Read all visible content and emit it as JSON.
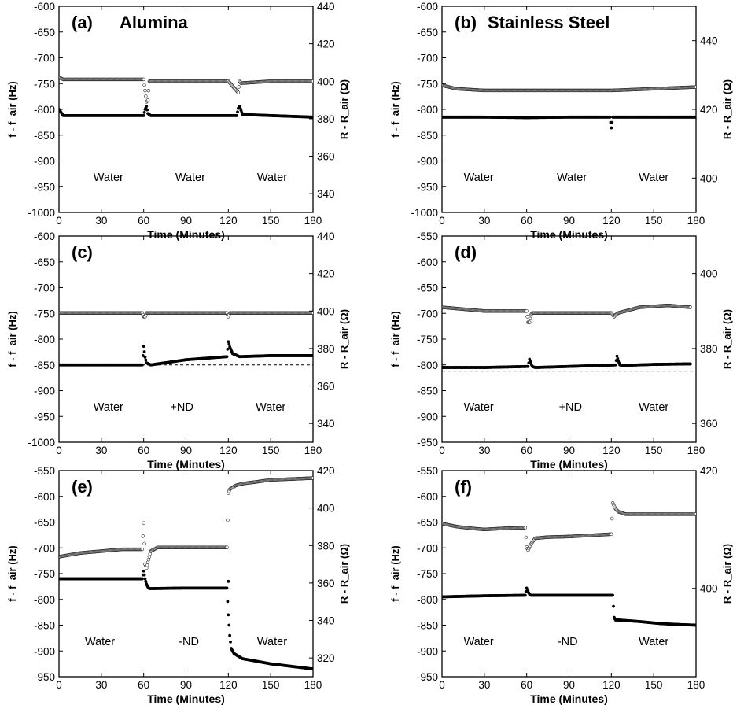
{
  "chart_data": [
    {
      "type": "scatter",
      "title_letter": "(a)",
      "title": "Alumina",
      "xlabel": "Time (Minutes)",
      "ylabel_left": "f - f_air (Hz)",
      "ylabel_right": "R - R_air (Ω)",
      "xlim": [
        0,
        180
      ],
      "ylim_left": [
        -1000,
        -600
      ],
      "ylim_right": [
        330,
        440
      ],
      "xticks": [
        0,
        30,
        60,
        90,
        120,
        150,
        180
      ],
      "yticks_left": [
        -600,
        -650,
        -700,
        -750,
        -800,
        -850,
        -900,
        -950,
        -1000
      ],
      "yticks_right": [
        340,
        360,
        380,
        400,
        420,
        440
      ],
      "conditions": [
        {
          "label": "Water",
          "x": 35
        },
        {
          "label": "Water",
          "x": 93
        },
        {
          "label": "Water",
          "x": 151
        }
      ],
      "baseline": null,
      "series": [
        {
          "name": "f - f_air (Hz)",
          "axis": "left",
          "marker": "filled",
          "x": [
            0,
            3,
            30,
            60,
            61,
            62,
            63,
            65,
            90,
            120,
            126,
            127,
            128,
            130,
            150,
            180
          ],
          "y": [
            -800,
            -812,
            -812,
            -812,
            -800,
            -794,
            -808,
            -812,
            -812,
            -812,
            -812,
            -798,
            -794,
            -810,
            -812,
            -815
          ]
        },
        {
          "name": "R - R_air (Ω)",
          "axis": "right",
          "marker": "open",
          "x": [
            0,
            3,
            30,
            60,
            62,
            63,
            64,
            90,
            120,
            127,
            128,
            129,
            150,
            180
          ],
          "y": [
            402,
            401,
            401,
            401,
            389,
            390,
            400,
            400,
            400,
            394,
            400,
            399,
            400,
            400
          ]
        }
      ]
    },
    {
      "type": "scatter",
      "title_letter": "(b)",
      "title": "Stainless Steel",
      "xlabel": "Time (Minutes)",
      "ylabel_left": "f - f_air (Hz)",
      "ylabel_right": "R - R_air (Ω)",
      "xlim": [
        0,
        180
      ],
      "ylim_left": [
        -1000,
        -600
      ],
      "ylim_right": [
        390,
        450
      ],
      "xticks": [
        0,
        30,
        60,
        90,
        120,
        150,
        180
      ],
      "yticks_left": [
        -600,
        -650,
        -700,
        -750,
        -800,
        -850,
        -900,
        -950,
        -1000
      ],
      "yticks_right": [
        400,
        420,
        440
      ],
      "conditions": [
        {
          "label": "Water",
          "x": 26
        },
        {
          "label": "Water",
          "x": 92
        },
        {
          "label": "Water",
          "x": 150
        }
      ],
      "baseline": null,
      "series": [
        {
          "name": "f - f_air (Hz)",
          "axis": "left",
          "marker": "filled",
          "x": [
            0,
            30,
            60,
            90,
            119,
            120,
            121,
            150,
            180
          ],
          "y": [
            -815,
            -815,
            -816,
            -815,
            -815,
            -836,
            -815,
            -815,
            -815
          ]
        },
        {
          "name": "R - R_air (Ω)",
          "axis": "right",
          "marker": "open",
          "x": [
            0,
            10,
            30,
            60,
            90,
            120,
            150,
            180
          ],
          "y": [
            427,
            426,
            425.5,
            425.5,
            425.5,
            425.5,
            426,
            426.5
          ]
        }
      ]
    },
    {
      "type": "scatter",
      "title_letter": "(c)",
      "title": "",
      "xlabel": "Time (Minutes)",
      "ylabel_left": "f - f_air (Hz)",
      "ylabel_right": "R - R_air (Ω)",
      "xlim": [
        0,
        180
      ],
      "ylim_left": [
        -1000,
        -600
      ],
      "ylim_right": [
        330,
        440
      ],
      "xticks": [
        0,
        30,
        60,
        90,
        120,
        150,
        180
      ],
      "yticks_left": [
        -600,
        -650,
        -700,
        -750,
        -800,
        -850,
        -900,
        -950,
        -1000
      ],
      "yticks_right": [
        340,
        360,
        380,
        400,
        420,
        440
      ],
      "conditions": [
        {
          "label": "Water",
          "x": 35
        },
        {
          "label": "+ND",
          "x": 87
        },
        {
          "label": "Water",
          "x": 150
        }
      ],
      "baseline": -850,
      "series": [
        {
          "name": "f - f_air (Hz)",
          "axis": "left",
          "marker": "filled",
          "x": [
            0,
            30,
            59,
            60,
            61,
            62,
            65,
            90,
            119,
            120,
            121,
            123,
            128,
            150,
            180
          ],
          "y": [
            -850,
            -850,
            -850,
            -814,
            -835,
            -846,
            -850,
            -840,
            -834,
            -805,
            -815,
            -828,
            -834,
            -832,
            -832
          ],
          "dashed_baseline": -850
        },
        {
          "name": "R - R_air (Ω)",
          "axis": "right",
          "marker": "open",
          "x": [
            0,
            30,
            59,
            60,
            61,
            62,
            90,
            119,
            120,
            121,
            150,
            180
          ],
          "y": [
            399,
            399,
            399,
            397,
            397,
            399,
            399,
            399,
            397,
            399,
            399,
            399
          ]
        }
      ]
    },
    {
      "type": "scatter",
      "title_letter": "(d)",
      "title": "",
      "xlabel": "Time (Minutes)",
      "ylabel_left": "f - f_air (Hz)",
      "ylabel_right": "R - R_air (Ω)",
      "xlim": [
        0,
        180
      ],
      "ylim_left": [
        -950,
        -550
      ],
      "ylim_right": [
        355,
        410
      ],
      "xticks": [
        0,
        30,
        60,
        90,
        120,
        150,
        180
      ],
      "yticks_left": [
        -550,
        -600,
        -650,
        -700,
        -750,
        -800,
        -850,
        -900,
        -950
      ],
      "yticks_right": [
        360,
        380,
        400
      ],
      "conditions": [
        {
          "label": "Water",
          "x": 26
        },
        {
          "label": "+ND",
          "x": 91
        },
        {
          "label": "Water",
          "x": 150
        }
      ],
      "baseline": -812,
      "series": [
        {
          "name": "f - f_air (Hz)",
          "axis": "left",
          "marker": "filled",
          "x": [
            0,
            30,
            61,
            62,
            63,
            64,
            66,
            90,
            123,
            124,
            125,
            126,
            128,
            150,
            176
          ],
          "y": [
            -805,
            -805,
            -803,
            -789,
            -797,
            -803,
            -805,
            -803,
            -800,
            -783,
            -793,
            -800,
            -801,
            -799,
            -798
          ]
        },
        {
          "name": "R - R_air (Ω)",
          "axis": "right",
          "marker": "open",
          "x": [
            0,
            30,
            60,
            61,
            62,
            63,
            64,
            90,
            120,
            122,
            123,
            125,
            140,
            160,
            176
          ],
          "y": [
            391,
            390,
            390,
            387,
            387,
            389,
            389.5,
            389.5,
            389.5,
            388.5,
            389,
            389.5,
            391,
            391.5,
            391
          ]
        }
      ]
    },
    {
      "type": "scatter",
      "title_letter": "(e)",
      "title": "",
      "xlabel": "Time (Minutes)",
      "ylabel_left": "f - f_air (Hz)",
      "ylabel_right": "R - R_air (Ω)",
      "xlim": [
        0,
        180
      ],
      "ylim_left": [
        -950,
        -550
      ],
      "ylim_right": [
        310,
        420
      ],
      "xticks": [
        0,
        30,
        60,
        90,
        120,
        150,
        180
      ],
      "yticks_left": [
        -550,
        -600,
        -650,
        -700,
        -750,
        -800,
        -850,
        -900,
        -950
      ],
      "yticks_right": [
        320,
        340,
        360,
        380,
        400,
        420
      ],
      "conditions": [
        {
          "label": "Water",
          "x": 29
        },
        {
          "label": "-ND",
          "x": 92
        },
        {
          "label": "Water",
          "x": 151
        }
      ],
      "baseline": null,
      "series": [
        {
          "name": "f - f_air (Hz)",
          "axis": "left",
          "marker": "filled",
          "x": [
            0,
            30,
            59,
            60,
            61,
            62,
            63,
            64,
            66,
            90,
            119,
            120,
            121,
            122,
            124,
            130,
            150,
            180
          ],
          "y": [
            -760,
            -760,
            -760,
            -745,
            -760,
            -770,
            -776,
            -779,
            -779,
            -778,
            -778,
            -830,
            -870,
            -895,
            -905,
            -915,
            -925,
            -935
          ],
          "outliers": [
            [
              120,
              -765
            ]
          ]
        },
        {
          "name": "R - R_air (Ω)",
          "axis": "right",
          "marker": "open",
          "x": [
            0,
            15,
            30,
            45,
            59,
            60,
            61,
            62,
            63,
            65,
            70,
            90,
            119,
            120,
            121,
            125,
            130,
            150,
            180
          ],
          "y": [
            374,
            376,
            377,
            378,
            378,
            392,
            370,
            368,
            371,
            377,
            379,
            379,
            379,
            408,
            410,
            412,
            413,
            415,
            416
          ]
        }
      ]
    },
    {
      "type": "scatter",
      "title_letter": "(f)",
      "title": "",
      "xlabel": "Time (Minutes)",
      "ylabel_left": "f - f_air (Hz)",
      "ylabel_right": "R - R_air (Ω)",
      "xlim": [
        0,
        180
      ],
      "ylim_left": [
        -950,
        -550
      ],
      "ylim_right": [
        385,
        420
      ],
      "xticks": [
        0,
        30,
        60,
        90,
        120,
        150,
        180
      ],
      "yticks_left": [
        -550,
        -600,
        -650,
        -700,
        -750,
        -800,
        -850,
        -900,
        -950
      ],
      "yticks_right": [
        400,
        420
      ],
      "conditions": [
        {
          "label": "Water",
          "x": 26
        },
        {
          "label": "-ND",
          "x": 89
        },
        {
          "label": "Water",
          "x": 150
        }
      ],
      "baseline": null,
      "series": [
        {
          "name": "f - f_air (Hz)",
          "axis": "left",
          "marker": "filled",
          "x": [
            0,
            30,
            59,
            60,
            61,
            62,
            63,
            65,
            90,
            121,
            122,
            123,
            125,
            140,
            155,
            170,
            180
          ],
          "y": [
            -795,
            -793,
            -792,
            -778,
            -785,
            -790,
            -792,
            -792,
            -792,
            -792,
            -835,
            -840,
            -840,
            -843,
            -847,
            -849,
            -850
          ]
        },
        {
          "name": "R - R_air (Ω)",
          "axis": "right",
          "marker": "open",
          "x": [
            0,
            10,
            20,
            30,
            45,
            59,
            60,
            61,
            63,
            66,
            75,
            90,
            120,
            121,
            122,
            123,
            125,
            130,
            150,
            180
          ],
          "y": [
            411,
            410.5,
            410.2,
            410,
            410.2,
            410.3,
            407,
            406.5,
            407.5,
            408.5,
            408.7,
            408.8,
            409.2,
            414.5,
            414,
            413.5,
            413,
            412.6,
            412.6,
            412.6
          ]
        }
      ]
    }
  ]
}
